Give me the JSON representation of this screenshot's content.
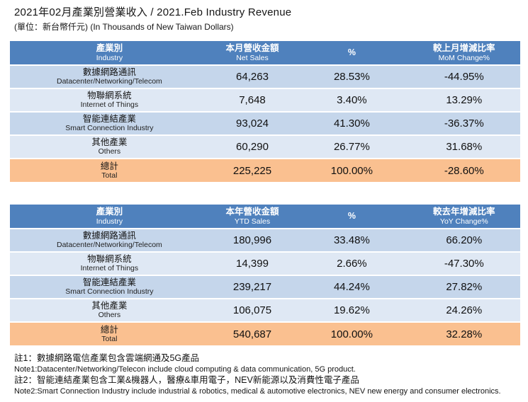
{
  "title": "2021年02月產業別營業收入  / 2021.Feb Industry Revenue",
  "subtitle": "(單位：新台幣仟元) (In Thousands of New Taiwan Dollars)",
  "colors": {
    "header_blue": "#4F81BD",
    "row_band_dark": "#C5D6EB",
    "row_band_light": "#DFE8F4",
    "total_orange": "#FAC090",
    "header_text": "#FFFFFF"
  },
  "table_monthly": {
    "headers": {
      "industry_zh": "產業別",
      "industry_en": "Industry",
      "sales_zh": "本月營收金額",
      "sales_en": "Net Sales",
      "percent": "%",
      "change_zh": "較上月增減比率",
      "change_en": "MoM Change%"
    },
    "rows": [
      {
        "zh": "數據網路通訊",
        "en": "Datacenter/Networking/Telecom",
        "value": "64,263",
        "pct": "28.53%",
        "change": "-44.95%"
      },
      {
        "zh": "物聯網系統",
        "en": "Internet of Things",
        "value": "7,648",
        "pct": "3.40%",
        "change": "13.29%"
      },
      {
        "zh": "智能連結產業",
        "en": "Smart Connection Industry",
        "value": "93,024",
        "pct": "41.30%",
        "change": "-36.37%"
      },
      {
        "zh": "其他產業",
        "en": "Others",
        "value": "60,290",
        "pct": "26.77%",
        "change": "31.68%"
      }
    ],
    "total": {
      "zh": "總計",
      "en": "Total",
      "value": "225,225",
      "pct": "100.00%",
      "change": "-28.60%"
    }
  },
  "table_ytd": {
    "headers": {
      "industry_zh": "產業別",
      "industry_en": "Industry",
      "sales_zh": "本年營收金額",
      "sales_en": "YTD Sales",
      "percent": "%",
      "change_zh": "較去年增減比率",
      "change_en": "YoY Change%"
    },
    "rows": [
      {
        "zh": "數據網路通訊",
        "en": "Datacenter/Networking/Telecom",
        "value": "180,996",
        "pct": "33.48%",
        "change": "66.20%"
      },
      {
        "zh": "物聯網系統",
        "en": "Internet of Things",
        "value": "14,399",
        "pct": "2.66%",
        "change": "-47.30%"
      },
      {
        "zh": "智能連結產業",
        "en": "Smart Connection Industry",
        "value": "239,217",
        "pct": "44.24%",
        "change": "27.82%"
      },
      {
        "zh": "其他產業",
        "en": "Others",
        "value": "106,075",
        "pct": "19.62%",
        "change": "24.26%"
      }
    ],
    "total": {
      "zh": "總計",
      "en": "Total",
      "value": "540,687",
      "pct": "100.00%",
      "change": "32.28%"
    }
  },
  "notes": [
    {
      "zh": "註1：數據網路電信產業包含雲端網通及5G產品",
      "en": "Note1:Datacenter/Networking/Telecon include cloud computing & data communication, 5G product."
    },
    {
      "zh": "註2：智能連結產業包含工業&機器人，醫療&車用電子，NEV新能源以及消費性電子產品",
      "en": "Note2:Smart Connection Industry include industrial & robotics, medical & automotive electronics, NEV new energy and consumer electronics."
    }
  ]
}
